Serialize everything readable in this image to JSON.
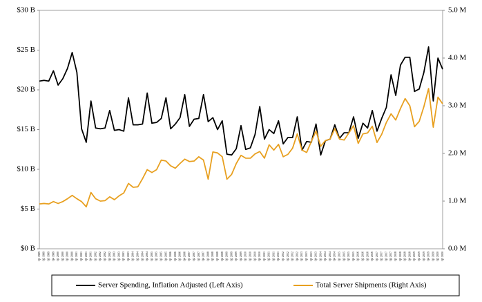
{
  "chart_data": {
    "type": "line",
    "categories": [
      "Q1 1999",
      "Q2 1999",
      "Q3 1999",
      "Q4 1999",
      "Q1 2000",
      "Q2 2000",
      "Q3 2000",
      "Q4 2000",
      "Q1 2001",
      "Q2 2001",
      "Q3 2001",
      "Q4 2001",
      "Q1 2002",
      "Q2 2002",
      "Q3 2002",
      "Q4 2002",
      "Q1 2003",
      "Q2 2003",
      "Q3 2003",
      "Q4 2003",
      "Q1 2004",
      "Q2 2004",
      "Q3 2004",
      "Q4 2004",
      "Q1 2005",
      "Q2 2005",
      "Q3 2005",
      "Q4 2005",
      "Q1 2006",
      "Q2 2006",
      "Q3 2006",
      "Q4 2006",
      "Q1 2007",
      "Q2 2007",
      "Q3 2007",
      "Q4 2007",
      "Q1 2008",
      "Q2 2008",
      "Q3 2008",
      "Q4 2008",
      "Q1 2009",
      "Q2 2009",
      "Q3 2009",
      "Q4 2009",
      "Q1 2010",
      "Q2 2010",
      "Q3 2010",
      "Q4 2010",
      "Q1 2011",
      "Q2 2011",
      "Q3 2011",
      "Q4 2011",
      "Q1 2012",
      "Q2 2012",
      "Q3 2012",
      "Q4 2012",
      "Q1 2013",
      "Q2 2013",
      "Q3 2013",
      "Q4 2013",
      "Q1 2014",
      "Q2 2014",
      "Q3 2014",
      "Q4 2014",
      "Q1 2015",
      "Q2 2015",
      "Q3 2015",
      "Q4 2015",
      "Q1 2016",
      "Q2 2016",
      "Q3 2016",
      "Q4 2016",
      "Q1 2017",
      "Q2 2017",
      "Q3 2017",
      "Q4 2017",
      "Q1 2018",
      "Q2 2018",
      "Q3 2018",
      "Q4 2018",
      "Q1 2019",
      "Q2 2019",
      "Q3 2019",
      "Q4 2019",
      "Q1 2020",
      "Q2 2020",
      "Q3 2020"
    ],
    "series": [
      {
        "name": "Server Spending, Inflation Adjusted (Left Axis)",
        "color": "#000000",
        "values": [
          21.1,
          21.2,
          21.1,
          22.4,
          20.6,
          21.4,
          22.7,
          24.7,
          22.2,
          15.1,
          13.4,
          18.6,
          15.2,
          15.1,
          15.2,
          17.4,
          14.9,
          15.0,
          14.8,
          19.0,
          15.6,
          15.6,
          15.7,
          19.6,
          15.8,
          15.9,
          16.4,
          19.0,
          15.1,
          15.7,
          16.5,
          19.4,
          15.4,
          16.3,
          16.4,
          19.4,
          16.0,
          16.5,
          15.0,
          16.1,
          11.9,
          11.8,
          12.6,
          15.5,
          12.5,
          12.7,
          14.4,
          17.9,
          13.8,
          15.0,
          14.5,
          16.1,
          13.2,
          14.0,
          14.0,
          16.6,
          12.4,
          13.5,
          13.4,
          15.7,
          11.8,
          13.6,
          13.8,
          15.6,
          13.9,
          14.6,
          14.6,
          16.6,
          13.9,
          15.8,
          15.2,
          17.4,
          14.8,
          16.4,
          17.8,
          21.9,
          19.3,
          23.1,
          24.1,
          24.1,
          19.8,
          20.1,
          22.2,
          25.4,
          18.6,
          24.0,
          22.6
        ]
      },
      {
        "name": "Total Server Shipments (Right Axis)",
        "color": "#e8a020",
        "axis": "y2",
        "values": [
          0.94,
          0.95,
          0.94,
          0.99,
          0.95,
          0.99,
          1.05,
          1.12,
          1.05,
          0.99,
          0.88,
          1.18,
          1.05,
          1.0,
          1.01,
          1.09,
          1.03,
          1.11,
          1.17,
          1.37,
          1.29,
          1.3,
          1.47,
          1.66,
          1.6,
          1.66,
          1.86,
          1.84,
          1.74,
          1.69,
          1.79,
          1.88,
          1.83,
          1.84,
          1.93,
          1.86,
          1.46,
          2.03,
          2.01,
          1.93,
          1.46,
          1.56,
          1.79,
          1.96,
          1.9,
          1.9,
          1.99,
          2.04,
          1.9,
          2.18,
          2.07,
          2.19,
          1.93,
          1.98,
          2.11,
          2.41,
          2.07,
          2.02,
          2.25,
          2.47,
          2.15,
          2.27,
          2.3,
          2.52,
          2.3,
          2.28,
          2.43,
          2.58,
          2.21,
          2.41,
          2.43,
          2.57,
          2.23,
          2.4,
          2.65,
          2.83,
          2.7,
          2.94,
          3.15,
          3.0,
          2.56,
          2.67,
          2.98,
          3.36,
          2.55,
          3.18,
          3.04
        ]
      }
    ],
    "ylim": [
      0,
      30
    ],
    "yticks": [
      {
        "value": 0,
        "label": "$0 B"
      },
      {
        "value": 5,
        "label": "$5 B"
      },
      {
        "value": 10,
        "label": "$10 B"
      },
      {
        "value": 15,
        "label": "$15 B"
      },
      {
        "value": 20,
        "label": "$20 B"
      },
      {
        "value": 25,
        "label": "$25 B"
      },
      {
        "value": 30,
        "label": "$30 B"
      }
    ],
    "y2lim": [
      0,
      5
    ],
    "y2ticks": [
      {
        "value": 0,
        "label": "0.0 M"
      },
      {
        "value": 1,
        "label": "1.0 M"
      },
      {
        "value": 2,
        "label": "2.0 M"
      },
      {
        "value": 3,
        "label": "3.0 M"
      },
      {
        "value": 4,
        "label": "4.0 M"
      },
      {
        "value": 5,
        "label": "5.0 M"
      }
    ],
    "grid": false,
    "legend": "bottom"
  }
}
